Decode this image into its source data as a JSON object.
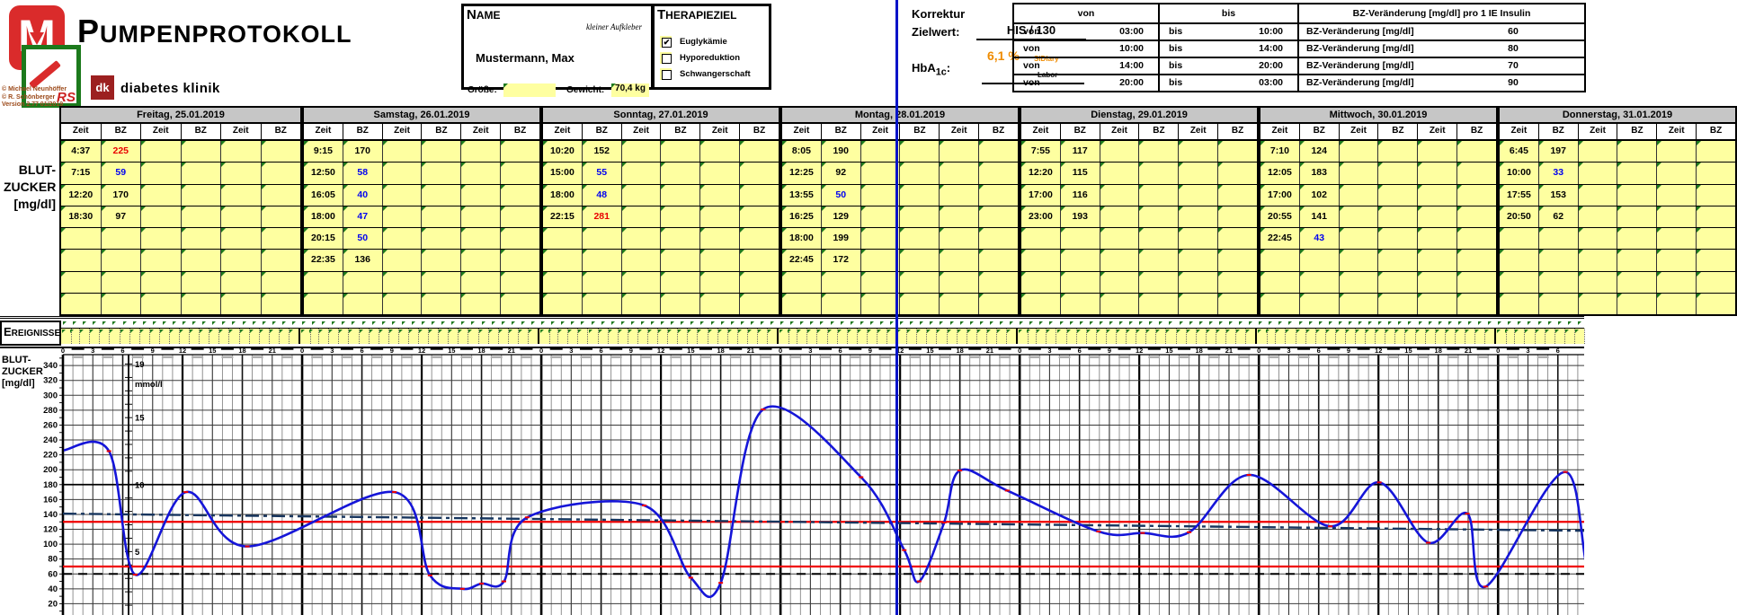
{
  "colors": {
    "cell_yellow": "#feffa0",
    "header_gray": "#c6c6c6",
    "curve_blue": "#1515d8",
    "target_red": "#f00000",
    "trend_navy": "#17355e",
    "low_blue": "#0000f0",
    "high_red": "#e80000",
    "green_marker": "#1e7a1e",
    "orange": "#ef8b00",
    "marker_blue": "#0013c8"
  },
  "header": {
    "title": "PUMPENPROTOKOLL",
    "clinic": "diabetes klinik",
    "m_text": "M",
    "rs_text": "RS",
    "dk_text": "dk",
    "copyright": [
      "© Michael Neunhöffer",
      "© R. Schönberger",
      "Version 2.77   01/2019"
    ]
  },
  "name_box": {
    "label": "NAME",
    "sticker_note": "kleiner Aufkleber",
    "patient": "Mustermann, Max",
    "groesse_label": "Größe:",
    "groesse_value": "",
    "gewicht_label": "Gewicht:",
    "gewicht_value": "70,4 kg"
  },
  "therapieziel": {
    "label": "THERAPIEZIEL",
    "check_glyph": "✔",
    "options": [
      {
        "label": "Euglykämie",
        "checked": true
      },
      {
        "label": "Hyporeduktion",
        "checked": false
      },
      {
        "label": "Schwangerschaft",
        "checked": false
      }
    ]
  },
  "korrektur": {
    "line1": "Korrektur",
    "line2": "Zielwert:",
    "zielwert_value": "HIS  /  130",
    "hba_prefix": "HbA",
    "hba_sub": "1c",
    "hba_suffix": ":",
    "hba1c_value": "6,1 %",
    "source_primary": "SiDiary",
    "source_secondary": "Labor"
  },
  "insulin_table": {
    "headers": {
      "von": "von",
      "bis": "bis",
      "bz": "BZ-Veränderung [mg/dl] pro 1 IE Insulin"
    },
    "rows": [
      {
        "von": "03:00",
        "bis": "10:00",
        "label": "BZ-Veränderung [mg/dl]",
        "value": "60"
      },
      {
        "von": "10:00",
        "bis": "14:00",
        "label": "BZ-Veränderung [mg/dl]",
        "value": "80"
      },
      {
        "von": "14:00",
        "bis": "20:00",
        "label": "BZ-Veränderung [mg/dl]",
        "value": "70"
      },
      {
        "von": "20:00",
        "bis": "03:00",
        "label": "BZ-Veränderung [mg/dl]",
        "value": "90"
      }
    ]
  },
  "bz_table": {
    "row_label_1": "BLUT-",
    "row_label_2": "ZUCKER",
    "row_label_3": "[mg/dl]",
    "col_zeit": "Zeit",
    "col_bz": "BZ",
    "rows_per_day": 8
  },
  "ereignisse": {
    "label": "EREIGNISSE"
  },
  "chart_data": {
    "type": "line",
    "ylabel_lines": [
      "BLUT-",
      "ZUCKER",
      "[mg/dl]"
    ],
    "y2label": "mmol/l",
    "ylim": [
      0,
      355
    ],
    "ytick_step": 20,
    "ytick_max": 340,
    "hour_labels": [
      0,
      3,
      6,
      9,
      12,
      15,
      18,
      21
    ],
    "y2_ticks": [
      {
        "label": "19",
        "mgdl": 342
      },
      {
        "label": "15",
        "mgdl": 270
      },
      {
        "label": "10",
        "mgdl": 180
      },
      {
        "label": "5",
        "mgdl": 90
      }
    ],
    "reference_lines": {
      "target": 130,
      "hypo": 70,
      "hypo_dashed": 60
    },
    "trend_line": {
      "start": 141,
      "end": 118
    },
    "start_value": 226,
    "low_threshold": 60,
    "high_threshold": 220,
    "days": [
      {
        "label": "Freitag,  25.01.2019",
        "readings": [
          {
            "zeit": "4:37",
            "bz": 225
          },
          {
            "zeit": "7:15",
            "bz": 59
          },
          {
            "zeit": "12:20",
            "bz": 170
          },
          {
            "zeit": "18:30",
            "bz": 97
          }
        ]
      },
      {
        "label": "Samstag,  26.01.2019",
        "readings": [
          {
            "zeit": "9:15",
            "bz": 170
          },
          {
            "zeit": "12:50",
            "bz": 58
          },
          {
            "zeit": "16:05",
            "bz": 40
          },
          {
            "zeit": "18:00",
            "bz": 47
          },
          {
            "zeit": "20:15",
            "bz": 50
          },
          {
            "zeit": "22:35",
            "bz": 136
          }
        ]
      },
      {
        "label": "Sonntag,  27.01.2019",
        "readings": [
          {
            "zeit": "10:20",
            "bz": 152
          },
          {
            "zeit": "15:00",
            "bz": 55
          },
          {
            "zeit": "18:00",
            "bz": 48
          },
          {
            "zeit": "22:15",
            "bz": 281
          }
        ]
      },
      {
        "label": "Montag,  28.01.2019",
        "readings": [
          {
            "zeit": "8:05",
            "bz": 190
          },
          {
            "zeit": "12:25",
            "bz": 92
          },
          {
            "zeit": "13:55",
            "bz": 50
          },
          {
            "zeit": "16:25",
            "bz": 129
          },
          {
            "zeit": "18:00",
            "bz": 199
          },
          {
            "zeit": "22:45",
            "bz": 172
          }
        ]
      },
      {
        "label": "Dienstag,  29.01.2019",
        "readings": [
          {
            "zeit": "7:55",
            "bz": 117
          },
          {
            "zeit": "12:20",
            "bz": 115
          },
          {
            "zeit": "17:00",
            "bz": 116
          },
          {
            "zeit": "23:00",
            "bz": 193
          }
        ]
      },
      {
        "label": "Mittwoch,  30.01.2019",
        "readings": [
          {
            "zeit": "7:10",
            "bz": 124
          },
          {
            "zeit": "12:05",
            "bz": 183
          },
          {
            "zeit": "17:00",
            "bz": 102
          },
          {
            "zeit": "20:55",
            "bz": 141
          },
          {
            "zeit": "22:45",
            "bz": 43
          }
        ]
      },
      {
        "label": "Donnerstag,  31.01.2019",
        "readings": [
          {
            "zeit": "6:45",
            "bz": 197
          },
          {
            "zeit": "10:00",
            "bz": 33
          },
          {
            "zeit": "17:55",
            "bz": 153
          },
          {
            "zeit": "20:50",
            "bz": 62
          }
        ]
      }
    ]
  }
}
